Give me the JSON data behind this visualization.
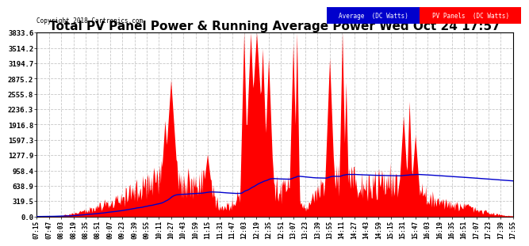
{
  "title": "Total PV Panel Power & Running Average Power Wed Oct 24 17:57",
  "copyright": "Copyright 2018 Cartronics.com",
  "legend_avg": "Average  (DC Watts)",
  "legend_pv": "PV Panels  (DC Watts)",
  "yticks": [
    0.0,
    319.5,
    638.9,
    958.4,
    1277.9,
    1597.3,
    1916.8,
    2236.3,
    2555.8,
    2875.2,
    3194.7,
    3514.2,
    3833.6
  ],
  "ymax": 3833.6,
  "ymin": 0.0,
  "background_color": "#ffffff",
  "plot_bg_color": "#ffffff",
  "grid_color": "#c8c8c8",
  "fill_color": "#ff0000",
  "line_color": "#0000cc",
  "title_fontsize": 11,
  "x_labels": [
    "07:15",
    "07:47",
    "08:03",
    "08:19",
    "08:35",
    "08:51",
    "09:07",
    "09:23",
    "09:39",
    "09:55",
    "10:11",
    "10:27",
    "10:43",
    "10:59",
    "11:15",
    "11:31",
    "11:47",
    "12:03",
    "12:19",
    "12:35",
    "12:51",
    "13:07",
    "13:23",
    "13:39",
    "13:55",
    "14:11",
    "14:27",
    "14:43",
    "14:59",
    "15:15",
    "15:31",
    "15:47",
    "16:03",
    "16:19",
    "16:35",
    "16:51",
    "17:07",
    "17:23",
    "17:39",
    "17:55"
  ]
}
